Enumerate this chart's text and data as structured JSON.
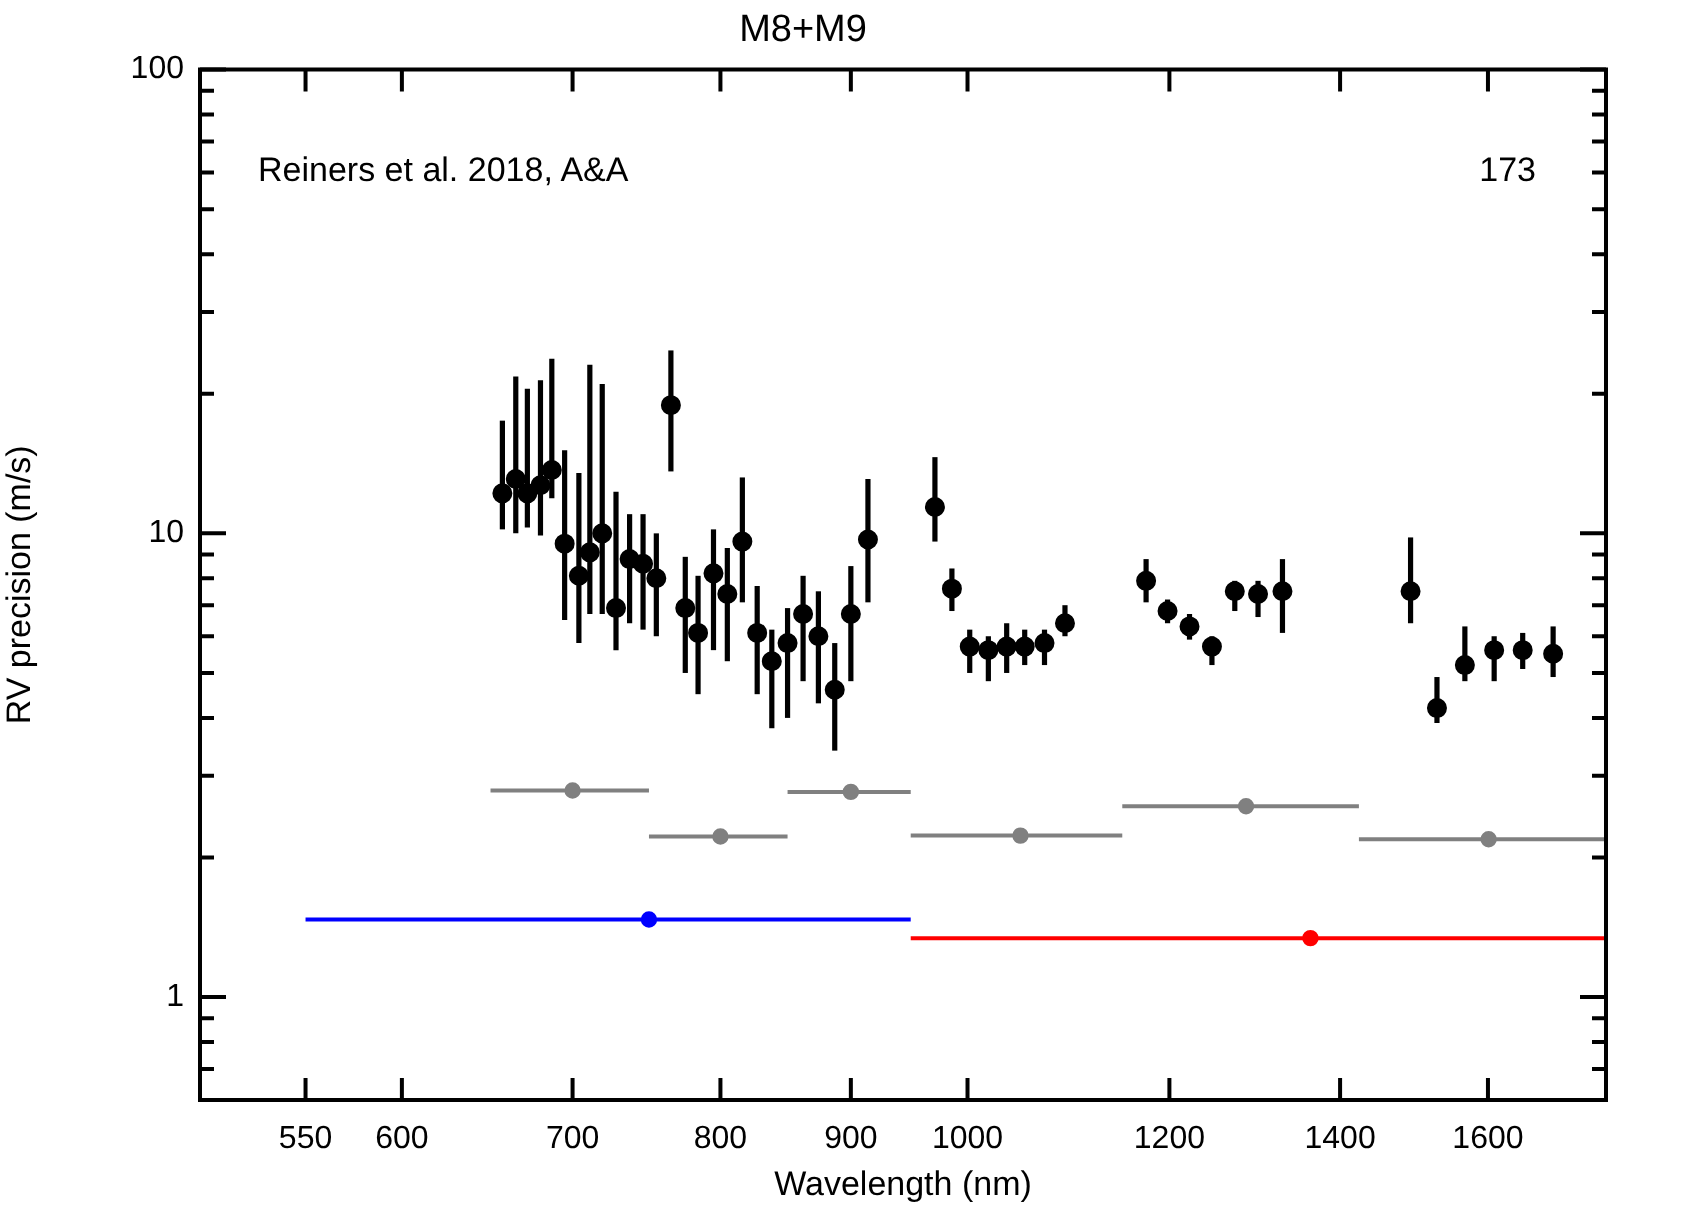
{
  "chart_data": {
    "type": "scatter",
    "title": "M8+M9",
    "xlabel": "Wavelength (nm)",
    "ylabel": "RV precision (m/s)",
    "annotations": [
      "Reiners et al. 2018, A&A",
      "173"
    ],
    "log": "xy",
    "grid": false,
    "legend": false,
    "marker": "circle",
    "xlim": [
      500,
      1780
    ],
    "ylim": [
      0.6,
      100
    ],
    "xticks": [
      550,
      600,
      700,
      800,
      900,
      1000,
      1200,
      1400,
      1600
    ],
    "yticks": [
      {
        "value": 0.6,
        "label": null
      },
      {
        "value": 0.7,
        "label": null
      },
      {
        "value": 0.8,
        "label": null
      },
      {
        "value": 0.9,
        "label": null
      },
      1,
      {
        "value": 2,
        "label": null
      },
      {
        "value": 3,
        "label": null
      },
      {
        "value": 4,
        "label": null
      },
      {
        "value": 5,
        "label": null
      },
      {
        "value": 6,
        "label": null
      },
      {
        "value": 7,
        "label": null
      },
      {
        "value": 8,
        "label": null
      },
      {
        "value": 9,
        "label": null
      },
      10,
      {
        "value": 20,
        "label": null
      },
      {
        "value": 30,
        "label": null
      },
      {
        "value": 40,
        "label": null
      },
      {
        "value": 50,
        "label": null
      },
      {
        "value": 60,
        "label": null
      },
      {
        "value": 70,
        "label": null
      },
      {
        "value": 80,
        "label": null
      },
      {
        "value": 90,
        "label": null
      },
      100
    ],
    "series": [
      {
        "color": "#000000",
        "x": [
          657,
          665,
          672,
          680,
          687,
          695,
          704,
          711,
          719,
          728,
          737,
          746,
          755,
          765,
          775,
          784,
          795,
          805,
          816,
          827,
          838,
          850,
          862,
          874,
          887,
          900,
          914,
          971,
          986,
          1002,
          1019,
          1036,
          1053,
          1072,
          1092,
          1175,
          1198,
          1222,
          1247,
          1273,
          1300,
          1329,
          1492,
          1528,
          1567,
          1609,
          1651,
          1697
        ],
        "values": [
          12.2,
          13.1,
          12.2,
          12.7,
          13.7,
          9.5,
          8.1,
          9.1,
          10.0,
          6.9,
          8.8,
          8.6,
          8.0,
          18.9,
          6.9,
          6.1,
          8.2,
          7.4,
          9.6,
          6.1,
          5.3,
          5.8,
          6.7,
          6.0,
          4.6,
          6.7,
          9.7,
          11.4,
          7.6,
          5.7,
          5.6,
          5.7,
          5.7,
          5.8,
          6.4,
          7.9,
          6.8,
          6.3,
          5.7,
          7.5,
          7.4,
          7.5,
          7.5,
          4.2,
          5.2,
          5.6,
          5.6,
          5.5
        ],
        "errors": [
          [
            10.2,
            17.5
          ],
          [
            10.0,
            21.8
          ],
          [
            10.3,
            20.5
          ],
          [
            9.9,
            21.4
          ],
          [
            11.9,
            23.8
          ],
          [
            6.5,
            15.1
          ],
          [
            5.8,
            13.5
          ],
          [
            6.7,
            23.1
          ],
          [
            6.7,
            21.0
          ],
          [
            5.6,
            12.3
          ],
          [
            6.4,
            11.0
          ],
          [
            6.2,
            11.0
          ],
          [
            6.0,
            10.0
          ],
          [
            13.6,
            24.8
          ],
          [
            5.0,
            8.9
          ],
          [
            4.5,
            8.1
          ],
          [
            5.6,
            10.2
          ],
          [
            5.3,
            9.3
          ],
          [
            7.1,
            13.2
          ],
          [
            4.5,
            7.7
          ],
          [
            3.8,
            6.2
          ],
          [
            4.0,
            6.9
          ],
          [
            4.8,
            8.1
          ],
          [
            4.3,
            7.5
          ],
          [
            3.4,
            5.8
          ],
          [
            4.8,
            8.5
          ],
          [
            7.1,
            13.1
          ],
          [
            9.6,
            14.6
          ],
          [
            6.8,
            8.4
          ],
          [
            5.0,
            6.2
          ],
          [
            4.8,
            6.0
          ],
          [
            5.0,
            6.4
          ],
          [
            5.2,
            6.2
          ],
          [
            5.2,
            6.2
          ],
          [
            6.0,
            7.0
          ],
          [
            7.1,
            8.8
          ],
          [
            6.4,
            7.2
          ],
          [
            5.9,
            6.7
          ],
          [
            5.2,
            6.0
          ],
          [
            6.8,
            7.9
          ],
          [
            6.6,
            7.9
          ],
          [
            6.1,
            8.8
          ],
          [
            6.4,
            9.8
          ],
          [
            3.9,
            4.9
          ],
          [
            4.8,
            6.3
          ],
          [
            4.8,
            6.0
          ],
          [
            5.1,
            6.1
          ],
          [
            4.9,
            6.3
          ]
        ]
      },
      {
        "color": "#808080",
        "x": [
          700,
          800,
          900,
          1049,
          1286,
          1601
        ],
        "values": [
          2.79,
          2.22,
          2.77,
          2.23,
          2.58,
          2.19
        ],
        "xerrors": [
          [
            650,
            750
          ],
          [
            750,
            850
          ],
          [
            850,
            950
          ],
          [
            950,
            1150
          ],
          [
            1150,
            1424
          ],
          [
            1424,
            1778
          ]
        ]
      },
      {
        "color": "#0000ff",
        "x": [
          750
        ],
        "values": [
          1.47
        ],
        "xerrors": [
          [
            550,
            950
          ]
        ]
      },
      {
        "color": "#ff0000",
        "x": [
          1363
        ],
        "values": [
          1.34
        ],
        "xerrors": [
          [
            950,
            1778
          ]
        ]
      }
    ]
  }
}
